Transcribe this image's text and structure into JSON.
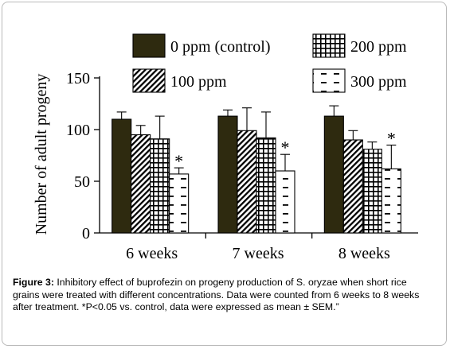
{
  "chart_data": {
    "type": "bar",
    "ylabel": "Number of adult progeny",
    "ylim": [
      0,
      150
    ],
    "yticks": [
      0,
      50,
      100,
      150
    ],
    "categories": [
      "6 weeks",
      "7 weeks",
      "8 weeks"
    ],
    "series": [
      {
        "name": "0 ppm (control)",
        "pattern": "solid",
        "color": "#2e2a0f",
        "values": [
          110,
          113,
          113
        ],
        "err": [
          7,
          6,
          10
        ]
      },
      {
        "name": "100 ppm",
        "pattern": "diagonal",
        "color": "#000000",
        "values": [
          95,
          99,
          90
        ],
        "err": [
          9,
          22,
          9
        ]
      },
      {
        "name": "200 ppm",
        "pattern": "grid",
        "color": "#000000",
        "values": [
          91,
          92,
          81
        ],
        "err": [
          22,
          25,
          7
        ]
      },
      {
        "name": "300 ppm",
        "pattern": "dash",
        "color": "#000000",
        "values": [
          57,
          60,
          62
        ],
        "err": [
          6,
          16,
          23
        ]
      }
    ],
    "annotations": [
      {
        "category": "6 weeks",
        "series": "300 ppm",
        "text": "*"
      },
      {
        "category": "7 weeks",
        "series": "300 ppm",
        "text": "*"
      },
      {
        "category": "8 weeks",
        "series": "300 ppm",
        "text": "*"
      }
    ],
    "legend": "top"
  },
  "caption": {
    "label": "Figure 3:",
    "text": " Inhibitory effect of buprofezin on progeny production of S. oryzae when short rice grains were treated with different concentrations. Data were counted from 6 weeks to 8 weeks after treatment. *P<0.05 vs. control, data were expressed as mean ± SEM.”"
  }
}
